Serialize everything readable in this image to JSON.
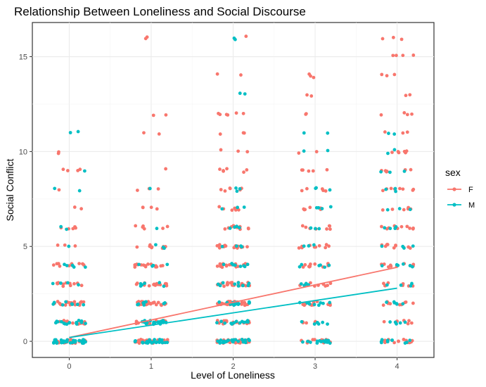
{
  "chart_data": {
    "type": "scatter",
    "title": "Relationship Between Loneliness and Social Discourse",
    "xlabel": "Level of Loneliness",
    "ylabel": "Social Conflict",
    "xlim": [
      -0.45,
      4.45
    ],
    "ylim": [
      -0.85,
      16.8
    ],
    "x_ticks": [
      0,
      1,
      2,
      3,
      4
    ],
    "x_tick_labels": [
      "0",
      "1",
      "2",
      "3",
      "4"
    ],
    "y_ticks": [
      0,
      5,
      10,
      15
    ],
    "y_tick_labels": [
      "0",
      "5",
      "10",
      "15"
    ],
    "grid": true,
    "jitter": 0.2,
    "legend": {
      "title": "sex",
      "placement": "right"
    },
    "series": [
      {
        "name": "F",
        "color": "#F8766D",
        "levels": [
          {
            "x": 0,
            "y_counts": [
              [
                0,
                40
              ],
              [
                1,
                14
              ],
              [
                2,
                20
              ],
              [
                3,
                12
              ],
              [
                4,
                10
              ],
              [
                5,
                3
              ],
              [
                6,
                5
              ],
              [
                7,
                2
              ],
              [
                8,
                1
              ],
              [
                9,
                4
              ],
              [
                10,
                2
              ]
            ]
          },
          {
            "x": 1,
            "y_counts": [
              [
                0,
                30
              ],
              [
                1,
                14
              ],
              [
                2,
                24
              ],
              [
                3,
                18
              ],
              [
                4,
                16
              ],
              [
                5,
                8
              ],
              [
                6,
                6
              ],
              [
                7,
                4
              ],
              [
                8,
                3
              ],
              [
                9,
                1
              ],
              [
                11,
                2
              ],
              [
                12,
                2
              ],
              [
                16,
                2
              ]
            ]
          },
          {
            "x": 2,
            "y_counts": [
              [
                0,
                40
              ],
              [
                1,
                16
              ],
              [
                2,
                28
              ],
              [
                3,
                26
              ],
              [
                4,
                22
              ],
              [
                5,
                16
              ],
              [
                6,
                12
              ],
              [
                7,
                8
              ],
              [
                8,
                6
              ],
              [
                9,
                6
              ],
              [
                10,
                3
              ],
              [
                11,
                3
              ],
              [
                12,
                6
              ],
              [
                14,
                2
              ],
              [
                16,
                1
              ]
            ]
          },
          {
            "x": 3,
            "y_counts": [
              [
                0,
                16
              ],
              [
                1,
                6
              ],
              [
                2,
                12
              ],
              [
                3,
                10
              ],
              [
                4,
                10
              ],
              [
                5,
                10
              ],
              [
                6,
                8
              ],
              [
                7,
                6
              ],
              [
                8,
                5
              ],
              [
                9,
                5
              ],
              [
                10,
                2
              ],
              [
                12,
                2
              ],
              [
                13,
                2
              ],
              [
                14,
                3
              ]
            ]
          },
          {
            "x": 4,
            "y_counts": [
              [
                0,
                14
              ],
              [
                1,
                6
              ],
              [
                2,
                10
              ],
              [
                3,
                8
              ],
              [
                4,
                10
              ],
              [
                5,
                10
              ],
              [
                6,
                10
              ],
              [
                7,
                6
              ],
              [
                8,
                8
              ],
              [
                9,
                6
              ],
              [
                10,
                6
              ],
              [
                11,
                3
              ],
              [
                12,
                4
              ],
              [
                13,
                2
              ],
              [
                14,
                3
              ],
              [
                15,
                4
              ],
              [
                16,
                3
              ]
            ]
          }
        ],
        "trend": {
          "x": [
            0,
            4
          ],
          "y": [
            0.2,
            3.9
          ]
        }
      },
      {
        "name": "M",
        "color": "#00BFC4",
        "levels": [
          {
            "x": 0,
            "y_counts": [
              [
                0,
                30
              ],
              [
                1,
                16
              ],
              [
                2,
                8
              ],
              [
                3,
                4
              ],
              [
                4,
                5
              ],
              [
                5,
                1
              ],
              [
                6,
                2
              ],
              [
                8,
                2
              ],
              [
                9,
                1
              ],
              [
                11,
                2
              ]
            ]
          },
          {
            "x": 1,
            "y_counts": [
              [
                0,
                28
              ],
              [
                1,
                20
              ],
              [
                2,
                8
              ],
              [
                3,
                6
              ],
              [
                4,
                4
              ],
              [
                5,
                3
              ],
              [
                6,
                1
              ],
              [
                8,
                1
              ]
            ]
          },
          {
            "x": 2,
            "y_counts": [
              [
                0,
                24
              ],
              [
                1,
                14
              ],
              [
                2,
                14
              ],
              [
                3,
                10
              ],
              [
                4,
                8
              ],
              [
                5,
                4
              ],
              [
                6,
                4
              ],
              [
                7,
                3
              ],
              [
                8,
                3
              ],
              [
                13,
                2
              ],
              [
                16,
                2
              ]
            ]
          },
          {
            "x": 3,
            "y_counts": [
              [
                0,
                14
              ],
              [
                1,
                6
              ],
              [
                2,
                8
              ],
              [
                3,
                5
              ],
              [
                4,
                6
              ],
              [
                5,
                3
              ],
              [
                6,
                3
              ],
              [
                7,
                4
              ],
              [
                8,
                3
              ],
              [
                10,
                2
              ],
              [
                11,
                2
              ]
            ]
          },
          {
            "x": 4,
            "y_counts": [
              [
                0,
                10
              ],
              [
                1,
                5
              ],
              [
                2,
                6
              ],
              [
                3,
                4
              ],
              [
                4,
                6
              ],
              [
                5,
                4
              ],
              [
                6,
                4
              ],
              [
                7,
                3
              ],
              [
                8,
                3
              ],
              [
                9,
                3
              ],
              [
                10,
                2
              ],
              [
                11,
                2
              ]
            ]
          }
        ],
        "trend": {
          "x": [
            0,
            4
          ],
          "y": [
            0.2,
            2.8
          ]
        }
      }
    ]
  }
}
